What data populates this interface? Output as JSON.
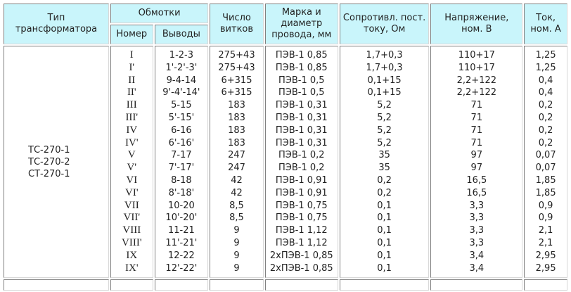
{
  "header": {
    "type": "Тип трансформатора",
    "windings": "Обмотки",
    "number": "Номер",
    "terminals": "Выводы",
    "turns": "Число витков",
    "wire": "Марка и диаметр провода, мм",
    "resistance": "Сопротивл. пост. току, Ом",
    "voltage": "Напряжение, ном. В",
    "current": "Ток, ном. А"
  },
  "types": [
    "ТС-270-1",
    "ТС-270-2",
    "СТ-270-1"
  ],
  "columns": {
    "number": [
      "I",
      "I'",
      "II",
      "II'",
      "III",
      "III'",
      "IV",
      "IV'",
      "V",
      "V'",
      "VI",
      "VI'",
      "VII",
      "VII'",
      "VIII",
      "VIII'",
      "IX",
      "IX'"
    ],
    "terminals": [
      "1-2-3",
      "1'-2'-3'",
      "9-4-14",
      "9'-4'-14'",
      "5-15",
      "5'-15'",
      "6-16",
      "6'-16'",
      "7-17",
      "7'-17'",
      "8-18",
      "8'-18'",
      "10-20",
      "10'-20'",
      "11-21",
      "11'-21'",
      "12-22",
      "12'-22'"
    ],
    "turns": [
      "275+43",
      "275+43",
      "6+315",
      "6+315",
      "183",
      "183",
      "183",
      "183",
      "247",
      "247",
      "42",
      "42",
      "8,5",
      "8,5",
      "9",
      "9",
      "9",
      "9"
    ],
    "wire": [
      "ПЭВ-1 0,85",
      "ПЭВ-1 0,85",
      "ПЭВ-1 0,5",
      "ПЭВ-1 0,5",
      "ПЭВ-1 0,31",
      "ПЭВ-1 0,31",
      "ПЭВ-1 0,31",
      "ПЭВ-1 0,31",
      "ПЭВ-1 0,2",
      "ПЭВ-1 0,2",
      "ПЭВ-1 0,91",
      "ПЭВ-1 0,91",
      "ПЭВ-1 0,75",
      "ПЭВ-1 0,75",
      "ПЭВ-1 1,12",
      "ПЭВ-1 1,12",
      "2хПЭВ-1 0,85",
      "2хПЭВ-1 0,85"
    ],
    "resistance": [
      "1,7+0,3",
      "1,7+0,3",
      "0,1+15",
      "0,1+15",
      "5,2",
      "5,2",
      "5,2",
      "5,2",
      "35",
      "35",
      "0,2",
      "0,2",
      "0,1",
      "0,1",
      "0,1",
      "0,1",
      "0,1",
      "0,1"
    ],
    "voltage": [
      "110+17",
      "110+17",
      "2,2+122",
      "2,2+122",
      "71",
      "71",
      "71",
      "71",
      "97",
      "97",
      "16,5",
      "16,5",
      "3,3",
      "3,3",
      "3,3",
      "3,3",
      "3,4",
      "3,4"
    ],
    "current": [
      "1,25",
      "1,25",
      "0,4",
      "0,4",
      "0,2",
      "0,2",
      "0,2",
      "0,2",
      "0,07",
      "0,07",
      "1,85",
      "1,85",
      "0,9",
      "0,9",
      "2,1",
      "2,1",
      "2,95",
      "2,95"
    ]
  }
}
